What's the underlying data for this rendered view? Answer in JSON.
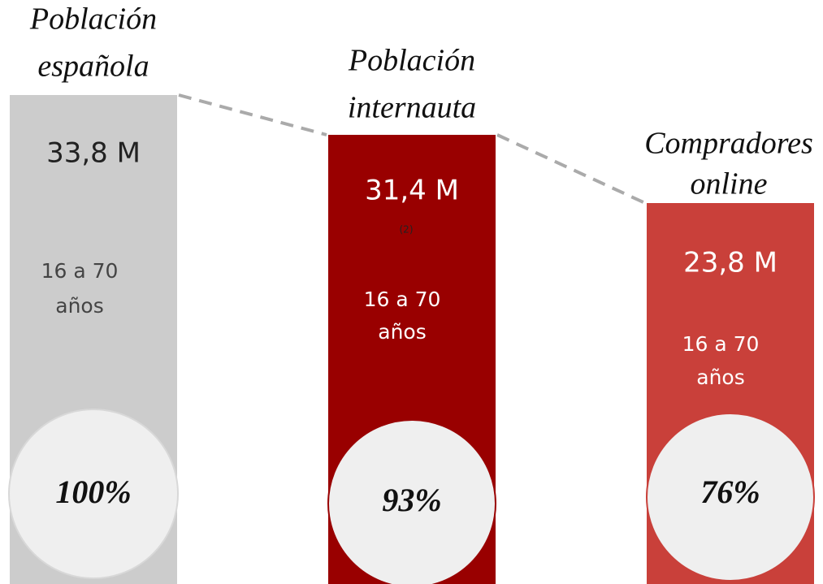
{
  "columns": [
    {
      "title": [
        "Población",
        "española"
      ],
      "value": "33,8 M",
      "age": [
        "16 a 70",
        "años"
      ],
      "percent": "100%"
    },
    {
      "title": [
        "Población",
        "internauta"
      ],
      "value": "31,4 M",
      "note": "(2)",
      "age": [
        "16 a 70",
        "años"
      ],
      "percent": "93%"
    },
    {
      "title": [
        "Compradores",
        "online"
      ],
      "value": "23,8 M",
      "age": [
        "16 a 70",
        "años"
      ],
      "percent": "76%"
    }
  ]
}
